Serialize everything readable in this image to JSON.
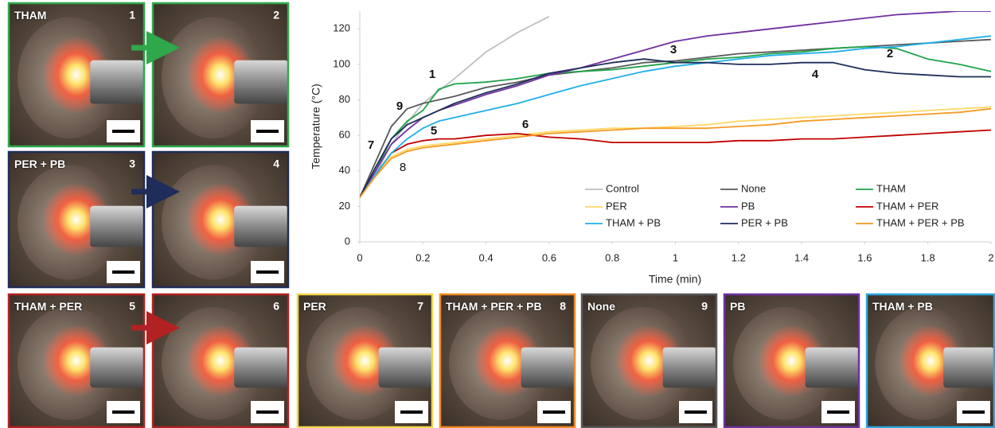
{
  "chart_data": {
    "type": "line",
    "x_label": "Time (min)",
    "y_label": "Temperature (°C)",
    "x": [
      0,
      0.05,
      0.1,
      0.15,
      0.2,
      0.25,
      0.3,
      0.4,
      0.5,
      0.6,
      0.7,
      0.8,
      0.9,
      1.0,
      1.1,
      1.2,
      1.3,
      1.4,
      1.5,
      1.6,
      1.7,
      1.8,
      1.9,
      2.0
    ],
    "xlim": [
      0,
      2
    ],
    "xticks": [
      0,
      0.2,
      0.4,
      0.6,
      0.8,
      1,
      1.2,
      1.4,
      1.6,
      1.8,
      2
    ],
    "ylim": [
      0,
      130
    ],
    "yticks": [
      0,
      20,
      40,
      60,
      80,
      100,
      120
    ],
    "grid": false,
    "legend": "lower right",
    "series": [
      {
        "name": "Control",
        "color": "#bfbfbf",
        "values": [
          25,
          38,
          55,
          67,
          78,
          85,
          92,
          107,
          118,
          127,
          null,
          null,
          null,
          null,
          null,
          null,
          null,
          null,
          null,
          null,
          null,
          null,
          null,
          null
        ]
      },
      {
        "name": "None",
        "color": "#595959",
        "values": [
          25,
          45,
          65,
          75,
          78,
          80,
          82,
          87,
          90,
          94,
          96,
          98,
          101,
          102,
          104,
          106,
          107,
          108,
          109,
          110,
          111,
          112,
          113,
          114
        ]
      },
      {
        "name": "THAM",
        "color": "#1fa34a",
        "values": [
          25,
          40,
          58,
          68,
          74,
          86,
          89,
          90,
          92,
          95,
          96,
          97,
          99,
          101,
          103,
          104,
          106,
          107,
          109,
          110,
          109,
          103,
          100,
          96
        ]
      },
      {
        "name": "PER",
        "color": "#ffd966",
        "values": [
          25,
          38,
          48,
          52,
          54,
          55,
          56,
          58,
          60,
          62,
          63,
          64,
          64,
          65,
          66,
          68,
          69,
          70,
          71,
          72,
          73,
          74,
          75,
          76
        ]
      },
      {
        "name": "PB",
        "color": "#7030a0",
        "values": [
          25,
          40,
          55,
          63,
          70,
          74,
          77,
          83,
          88,
          94,
          98,
          103,
          108,
          113,
          116,
          118,
          120,
          122,
          124,
          126,
          128,
          129,
          130,
          130
        ]
      },
      {
        "name": "THAM + PER",
        "color": "#c00000",
        "values": [
          25,
          38,
          50,
          55,
          57,
          58,
          58,
          60,
          61,
          59,
          58,
          56,
          56,
          56,
          56,
          57,
          57,
          58,
          58,
          59,
          60,
          61,
          62,
          63
        ]
      },
      {
        "name": "THAM + PB",
        "color": "#1fb0e8",
        "values": [
          25,
          38,
          50,
          58,
          64,
          68,
          70,
          74,
          78,
          83,
          88,
          92,
          96,
          99,
          101,
          103,
          105,
          106,
          107,
          109,
          110,
          112,
          114,
          116
        ]
      },
      {
        "name": "PER + PB",
        "color": "#1f2d5a",
        "values": [
          25,
          42,
          58,
          66,
          70,
          74,
          78,
          84,
          89,
          95,
          98,
          101,
          103,
          101,
          101,
          100,
          100,
          101,
          101,
          97,
          95,
          94,
          93,
          93
        ]
      },
      {
        "name": "THAM + PER + PB",
        "color": "#f59a23",
        "values": [
          25,
          37,
          47,
          51,
          53,
          54,
          55,
          57,
          59,
          61,
          62,
          63,
          64,
          64,
          64,
          65,
          66,
          68,
          69,
          70,
          71,
          72,
          73,
          75
        ]
      }
    ],
    "annotations": [
      "1",
      "2",
      "3",
      "4",
      "5",
      "6",
      "7",
      "8",
      "9"
    ]
  },
  "panels": [
    {
      "label": "THAM",
      "number": "1"
    },
    {
      "number": "2"
    },
    {
      "label": "PER + PB",
      "number": "3"
    },
    {
      "number": "4"
    },
    {
      "label": "THAM + PER",
      "number": "5"
    },
    {
      "number": "6"
    },
    {
      "label": "PER",
      "number": "7"
    },
    {
      "label": "THAM + PER + PB",
      "number": "8"
    },
    {
      "label": "None",
      "number": "9"
    },
    {
      "label": "PB"
    },
    {
      "label": "THAM + PB"
    }
  ]
}
